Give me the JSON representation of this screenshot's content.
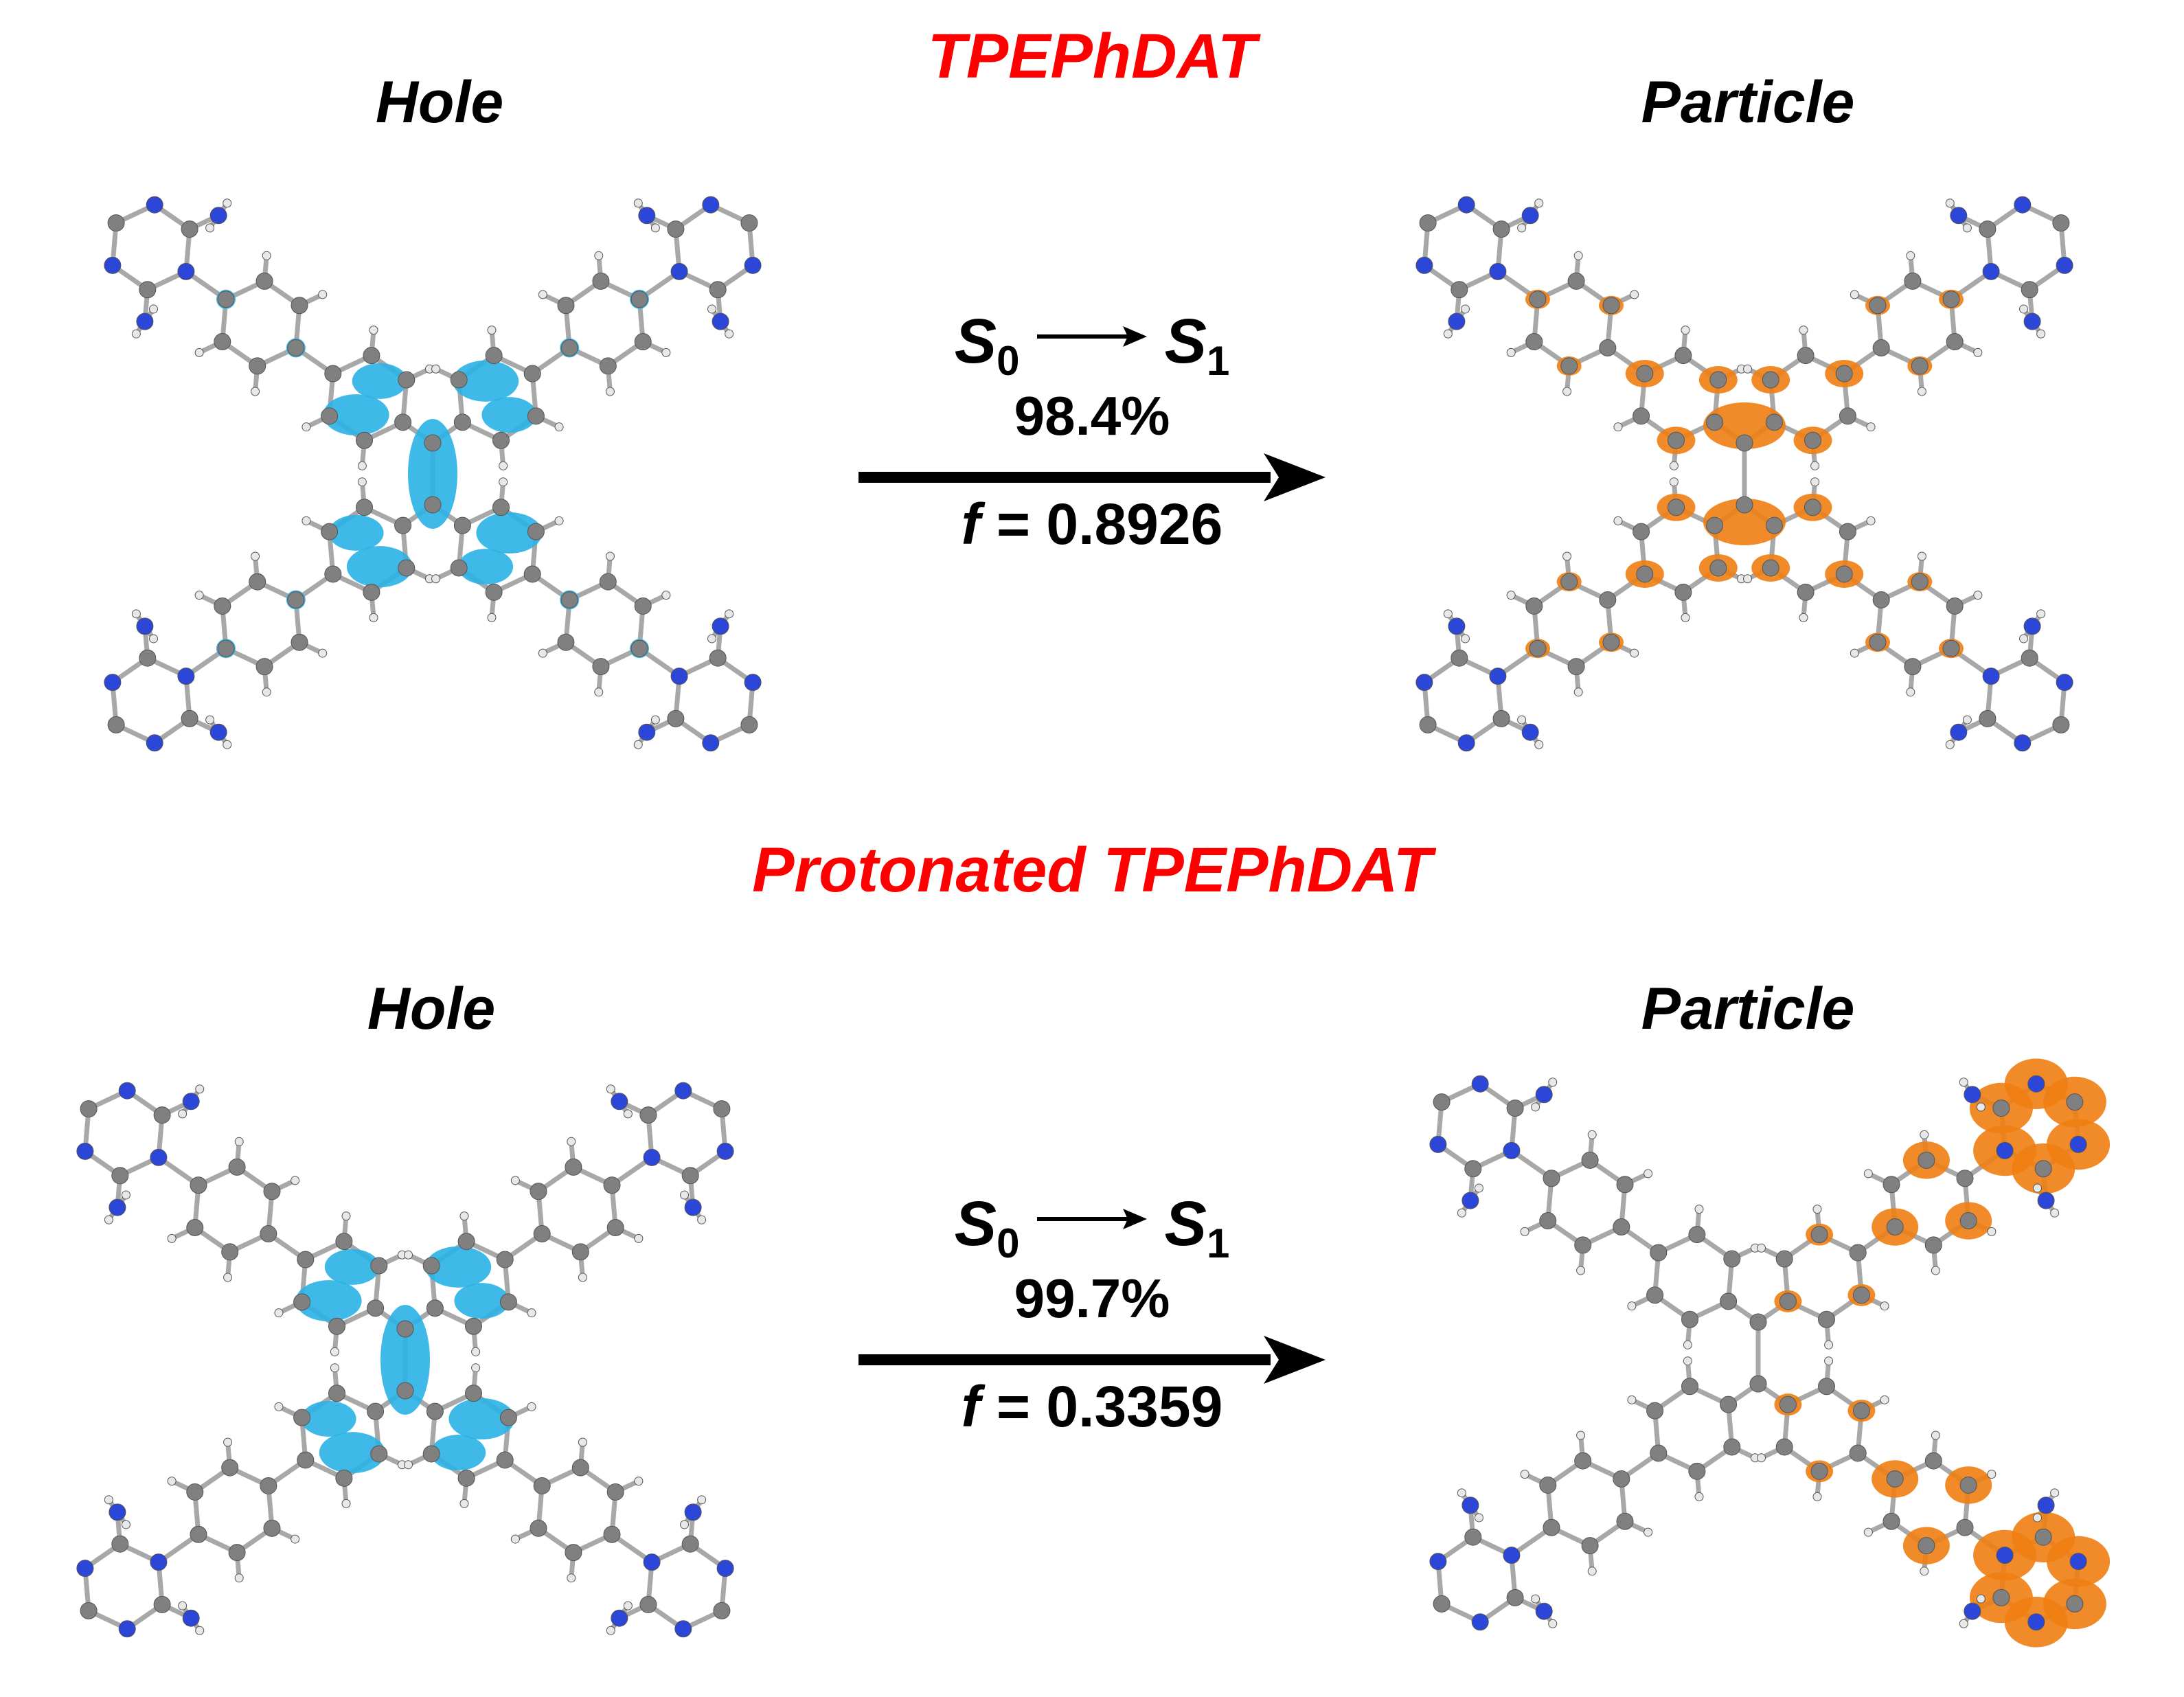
{
  "colors": {
    "title": "#ff0000",
    "hole": "#2ab2e6",
    "particle": "#f07e12",
    "carbon": "#808080",
    "nitrogen": "#2c46d8",
    "hydrogen": "#e8e8e8"
  },
  "top": {
    "title": "TPEPhDAT",
    "hole_label": "Hole",
    "particle_label": "Particle",
    "transition": {
      "from": "S",
      "from_sub": "0",
      "to": "S",
      "to_sub": "1",
      "percent": "98.4%",
      "osc_prefix": "f",
      "osc_value": "= 0.8926"
    }
  },
  "bottom": {
    "title": "Protonated TPEPhDAT",
    "hole_label": "Hole",
    "particle_label": "Particle",
    "transition": {
      "from": "S",
      "from_sub": "0",
      "to": "S",
      "to_sub": "1",
      "percent": "99.7%",
      "osc_prefix": "f",
      "osc_value": "= 0.3359"
    }
  }
}
